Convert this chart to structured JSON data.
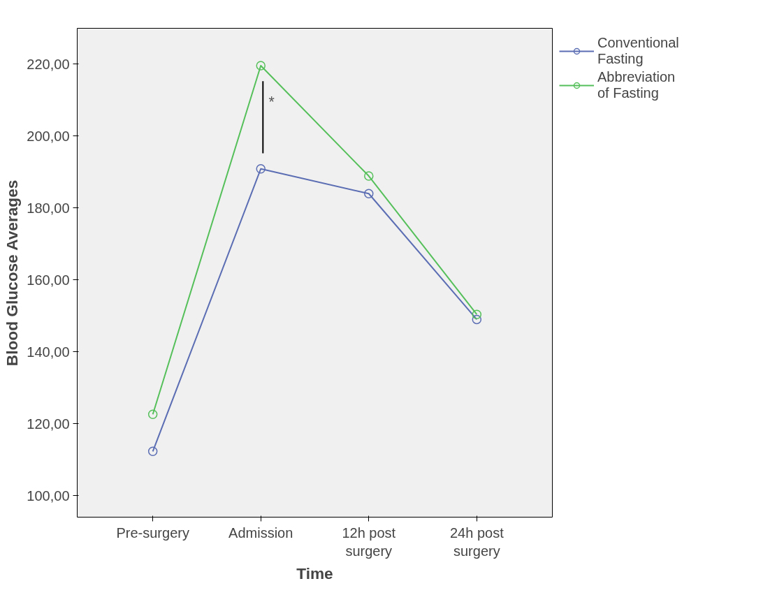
{
  "chart_data": {
    "type": "line",
    "xlabel": "Time",
    "ylabel": "Blood Glucose Averages",
    "categories": [
      "Pre-surgery",
      "Admission",
      "12h post surgery",
      "24h post surgery"
    ],
    "series": [
      {
        "name": "Conventional Fasting",
        "color": "#5b6db3",
        "values": [
          112.3,
          190.9,
          184.0,
          149.0
        ]
      },
      {
        "name": "Abbreviation of Fasting",
        "color": "#55c05a",
        "values": [
          122.6,
          219.6,
          188.9,
          150.4
        ]
      }
    ],
    "ylim": [
      94,
      230
    ],
    "yticks": [
      {
        "value": 100,
        "label": "100,00"
      },
      {
        "value": 120,
        "label": "120,00"
      },
      {
        "value": 140,
        "label": "140,00"
      },
      {
        "value": 160,
        "label": "160,00"
      },
      {
        "value": 180,
        "label": "180,00"
      },
      {
        "value": 200,
        "label": "200,00"
      },
      {
        "value": 220,
        "label": "220,00"
      }
    ],
    "annotations": [
      "*"
    ],
    "marker": "circle",
    "legend": "right",
    "grid": false
  }
}
